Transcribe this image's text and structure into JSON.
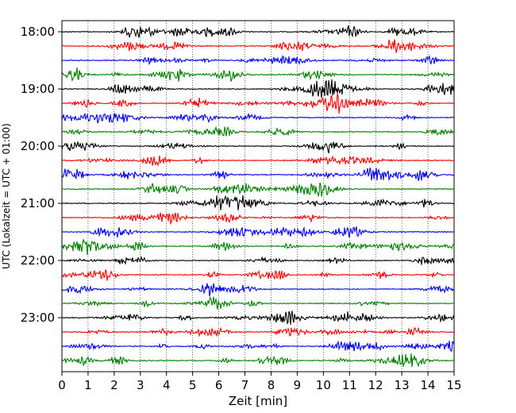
{
  "chart_data": {
    "type": "line",
    "subtype": "helicorder",
    "xlabel": "Zeit  [min]",
    "ylabel": "UTC (Lokalzeit = UTC + 01:00)",
    "xlim": [
      0,
      15
    ],
    "x_ticks": [
      "0",
      "1",
      "2",
      "3",
      "4",
      "5",
      "6",
      "7",
      "8",
      "9",
      "10",
      "11",
      "12",
      "13",
      "14",
      "15"
    ],
    "y_tick_labels": [
      "18:00",
      "19:00",
      "20:00",
      "21:00",
      "22:00",
      "23:00"
    ],
    "grid": {
      "vertical_dotted_at_each_minute": true
    },
    "trace_color_cycle": [
      "#000000",
      "#ff0000",
      "#0000ff",
      "#008000"
    ],
    "trace_start_times": [
      "18:00",
      "18:15",
      "18:30",
      "18:45",
      "19:00",
      "19:15",
      "19:30",
      "19:45",
      "20:00",
      "20:15",
      "20:30",
      "20:45",
      "21:00",
      "21:15",
      "21:30",
      "21:45",
      "22:00",
      "22:15",
      "22:30",
      "22:45",
      "23:00",
      "23:15",
      "23:30",
      "23:45"
    ]
  }
}
